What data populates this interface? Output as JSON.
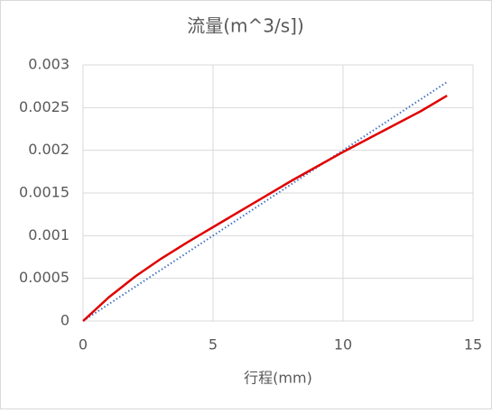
{
  "chart_data": {
    "type": "line",
    "title": "流量(m^3/s])",
    "x_label": "行程(mm)",
    "series": [
      {
        "color": "#e00000",
        "style": "solid",
        "x": [
          0,
          1,
          2,
          3,
          4,
          5,
          6,
          7,
          8,
          9,
          10,
          11,
          12,
          13,
          14
        ],
        "values": [
          0,
          0.00028,
          0.00052,
          0.00073,
          0.00092,
          0.0011,
          0.00128,
          0.00146,
          0.00164,
          0.00181,
          0.00198,
          0.00214,
          0.0023,
          0.00246,
          0.00264
        ]
      },
      {
        "color": "#4472c4",
        "style": "dotted",
        "x": [
          0,
          14
        ],
        "values": [
          0,
          0.0028
        ]
      }
    ],
    "xlim": [
      0,
      15
    ],
    "xticks": [
      0,
      5,
      10,
      15
    ],
    "ylim": [
      0,
      0.003
    ],
    "yticks": [
      0,
      0.0005,
      0.001,
      0.0015,
      0.002,
      0.0025,
      0.003
    ],
    "grid": true
  }
}
